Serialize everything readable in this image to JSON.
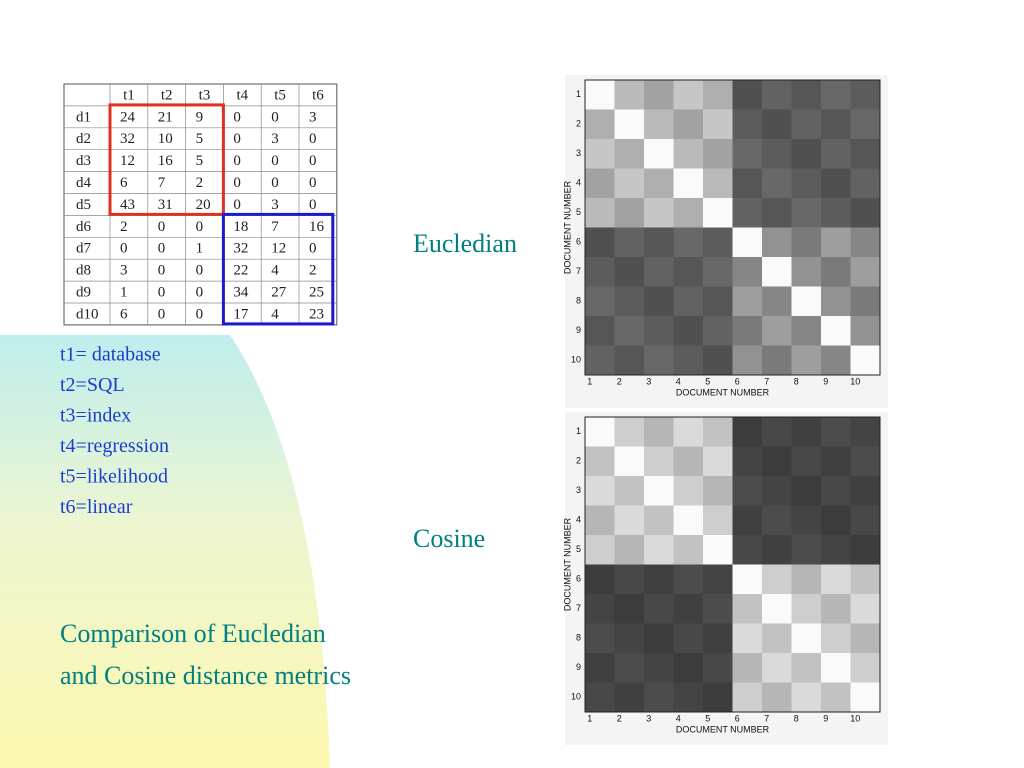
{
  "table": {
    "header": [
      "t1",
      "t2",
      "t3",
      "t4",
      "t5",
      "t6"
    ],
    "rows": [
      [
        "d1",
        "24",
        "21",
        "9",
        "0",
        "0",
        "3"
      ],
      [
        "d2",
        "32",
        "10",
        "5",
        "0",
        "3",
        "0"
      ],
      [
        "d3",
        "12",
        "16",
        "5",
        "0",
        "0",
        "0"
      ],
      [
        "d4",
        "6",
        "7",
        "2",
        "0",
        "0",
        "0"
      ],
      [
        "d5",
        "43",
        "31",
        "20",
        "0",
        "3",
        "0"
      ],
      [
        "d6",
        "2",
        "0",
        "0",
        "18",
        "7",
        "16"
      ],
      [
        "d7",
        "0",
        "0",
        "1",
        "32",
        "12",
        "0"
      ],
      [
        "d8",
        "3",
        "0",
        "0",
        "22",
        "4",
        "2"
      ],
      [
        "d9",
        "1",
        "0",
        "0",
        "34",
        "27",
        "25"
      ],
      [
        "d10",
        "6",
        "0",
        "0",
        "17",
        "4",
        "23"
      ]
    ]
  },
  "legend": [
    "t1= database",
    "t2=SQL",
    "t3=index",
    "t4=regression",
    "t5=likelihood",
    "t6=linear"
  ],
  "heatmaps": [
    {
      "label": "Eucledian",
      "ticks": [
        "1",
        "2",
        "3",
        "4",
        "5",
        "6",
        "7",
        "8",
        "9",
        "10"
      ],
      "x_title": "DOCUMENT NUMBER",
      "y_title": "DOCUMENT NUMBER"
    },
    {
      "label": "Cosine",
      "ticks": [
        "1",
        "2",
        "3",
        "4",
        "5",
        "6",
        "7",
        "8",
        "9",
        "10"
      ],
      "x_title": "DOCUMENT NUMBER",
      "y_title": "DOCUMENT NUMBER"
    }
  ],
  "caption": [
    "Comparison of Eucledian",
    "and Cosine distance metrics"
  ]
}
